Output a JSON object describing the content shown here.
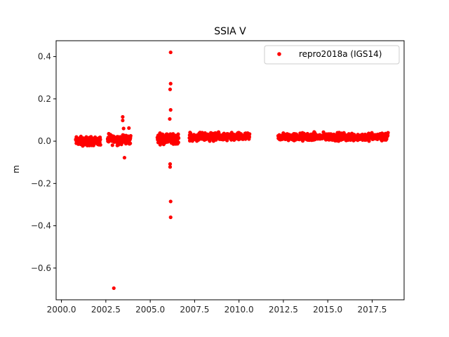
{
  "chart_data": {
    "type": "scatter",
    "title": "SSIA V",
    "xlabel": "",
    "ylabel": "m",
    "xlim": [
      1999.7,
      2019.3
    ],
    "ylim": [
      -0.75,
      0.475
    ],
    "x_ticks": [
      2000.0,
      2002.5,
      2005.0,
      2007.5,
      2010.0,
      2012.5,
      2015.0,
      2017.5
    ],
    "x_tick_labels": [
      "2000.0",
      "2002.5",
      "2005.0",
      "2007.5",
      "2010.0",
      "2012.5",
      "2015.0",
      "2017.5"
    ],
    "y_ticks": [
      -0.6,
      -0.4,
      -0.2,
      0.0,
      0.2,
      0.4
    ],
    "y_tick_labels": [
      "−0.6",
      "−0.4",
      "−0.2",
      "0.0",
      "0.2",
      "0.4"
    ],
    "grid": false,
    "legend_position": "top-right",
    "series": [
      {
        "name": "repro2018a (IGS14)",
        "color": "#ff0000",
        "marker": "circle",
        "clusters": [
          {
            "x_range": [
              2000.8,
              2002.2
            ],
            "y_center": 0.0,
            "y_spread": 0.022,
            "n": 140
          },
          {
            "x_range": [
              2002.6,
              2003.9
            ],
            "y_center": 0.008,
            "y_spread": 0.025,
            "n": 130
          },
          {
            "x_range": [
              2005.4,
              2006.6
            ],
            "y_center": 0.012,
            "y_spread": 0.025,
            "n": 130
          },
          {
            "x_range": [
              2007.2,
              2010.6
            ],
            "y_center": 0.02,
            "y_spread": 0.02,
            "n": 300
          },
          {
            "x_range": [
              2012.2,
              2018.4
            ],
            "y_center": 0.02,
            "y_spread": 0.02,
            "n": 520
          }
        ],
        "outliers": [
          {
            "x": 2002.95,
            "y": -0.695
          },
          {
            "x": 2003.45,
            "y": 0.115
          },
          {
            "x": 2003.45,
            "y": 0.098
          },
          {
            "x": 2003.5,
            "y": 0.06
          },
          {
            "x": 2003.55,
            "y": -0.078
          },
          {
            "x": 2003.8,
            "y": 0.062
          },
          {
            "x": 2006.15,
            "y": 0.42
          },
          {
            "x": 2006.15,
            "y": 0.272
          },
          {
            "x": 2006.12,
            "y": 0.245
          },
          {
            "x": 2006.15,
            "y": 0.148
          },
          {
            "x": 2006.1,
            "y": 0.105
          },
          {
            "x": 2006.12,
            "y": -0.108
          },
          {
            "x": 2006.12,
            "y": -0.122
          },
          {
            "x": 2006.15,
            "y": -0.285
          },
          {
            "x": 2006.15,
            "y": -0.36
          }
        ]
      }
    ]
  }
}
